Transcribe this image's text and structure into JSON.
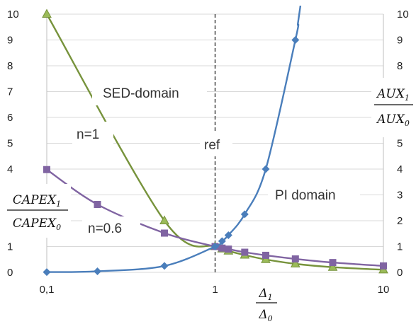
{
  "chart_data": {
    "type": "line",
    "x_scale": "log",
    "xlim": [
      0.1,
      10
    ],
    "ylim": [
      0,
      10
    ],
    "y2lim": [
      0,
      10
    ],
    "x_ticks": [
      "0,1",
      "1",
      "10"
    ],
    "y_ticks": [
      "0",
      "1",
      "2",
      "3",
      "4",
      "5",
      "6",
      "7",
      "8",
      "9",
      "10"
    ],
    "y2_ticks": [
      "0",
      "1",
      "2",
      "3",
      "4",
      "5",
      "6",
      "7",
      "8",
      "9",
      "10"
    ],
    "xlabel": {
      "num": "Δ",
      "num_sub": "1",
      "den": "Δ",
      "den_sub": "0"
    },
    "ylabel": {
      "num": "CAPEX",
      "num_sub": "1",
      "den": "CAPEX",
      "den_sub": "0"
    },
    "y2label": {
      "num": "AUX",
      "num_sub": "1",
      "den": "AUX",
      "den_sub": "0"
    },
    "grid": "horizontal",
    "series": [
      {
        "name": "n=1",
        "color": "#77933c",
        "marker": "triangle",
        "points": [
          [
            0.1,
            10
          ],
          [
            0.5,
            2.0
          ],
          [
            1.0,
            1.0
          ],
          [
            1.1,
            0.91
          ],
          [
            1.2,
            0.83
          ],
          [
            1.5,
            0.67
          ],
          [
            2.0,
            0.5
          ],
          [
            3.0,
            0.33
          ],
          [
            5.0,
            0.2
          ],
          [
            10.0,
            0.1
          ]
        ]
      },
      {
        "name": "n=0.6",
        "color": "#8064a2",
        "marker": "square",
        "points": [
          [
            0.1,
            3.98
          ],
          [
            0.2,
            2.63
          ],
          [
            0.5,
            1.52
          ],
          [
            1.0,
            1.0
          ],
          [
            1.1,
            0.94
          ],
          [
            1.2,
            0.9
          ],
          [
            1.5,
            0.78
          ],
          [
            2.0,
            0.66
          ],
          [
            3.0,
            0.52
          ],
          [
            5.0,
            0.38
          ],
          [
            10.0,
            0.25
          ]
        ]
      },
      {
        "name": "AUX",
        "axis": "right",
        "color": "#4a7ebb",
        "marker": "diamond",
        "points": [
          [
            0.1,
            0.01
          ],
          [
            0.2,
            0.04
          ],
          [
            0.5,
            0.25
          ],
          [
            1.0,
            1.0
          ],
          [
            1.1,
            1.21
          ],
          [
            1.2,
            1.44
          ],
          [
            1.5,
            2.25
          ],
          [
            2.0,
            4.0
          ],
          [
            3.0,
            9.0
          ]
        ]
      }
    ],
    "reference_line": {
      "x": 1,
      "label": "ref"
    },
    "annotations": {
      "sed_domain": "SED-domain",
      "pi_domain": "PI domain",
      "n1": "n=1",
      "n06": "n=0.6"
    }
  }
}
